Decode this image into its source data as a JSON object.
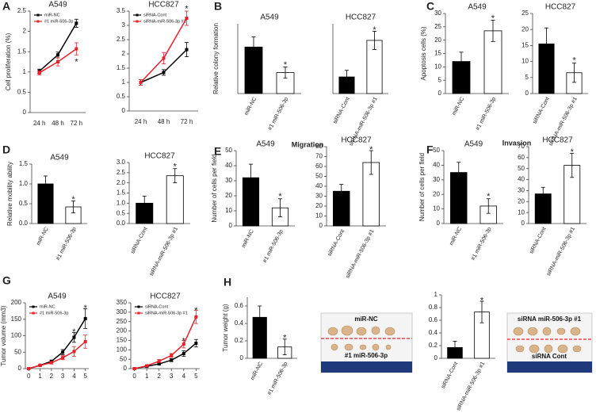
{
  "panel_labels": [
    "A",
    "B",
    "C",
    "D",
    "E",
    "F",
    "G",
    "H"
  ],
  "headings": [
    "Migration",
    "Invasion"
  ],
  "photos": [
    {
      "labels": [
        "miR-NC",
        "#1 miR-506-3p"
      ]
    },
    {
      "labels": [
        "siRNA miR-506-3p #1",
        "siRNA Cont"
      ]
    }
  ],
  "chart_data": [
    {
      "type": "line",
      "title": "A549",
      "ylabel": "Cell proliferation (%)",
      "categories": [
        "24 h",
        "48 h",
        "72 h"
      ],
      "series": [
        {
          "name": "miR-NC",
          "color": "#000000",
          "values": [
            1.02,
            1.42,
            2.2
          ],
          "errors": [
            0.05,
            0.07,
            0.1
          ]
        },
        {
          "name": "#1 miR-506-3p",
          "color": "#e8202a",
          "values": [
            0.98,
            1.25,
            1.57
          ],
          "errors": [
            0.05,
            0.1,
            0.15
          ]
        }
      ],
      "ylim": [
        0,
        2.5
      ],
      "yticks": [
        0,
        0.5,
        1,
        1.5,
        2,
        2.5
      ],
      "legend": "upper left",
      "annotations": [
        {
          "text": "*",
          "x": 2,
          "y": 1.3
        }
      ]
    },
    {
      "type": "line",
      "title": "HCC827",
      "categories": [
        "24 h",
        "48 h",
        "72 h"
      ],
      "series": [
        {
          "name": "siRNA-Cont",
          "color": "#000000",
          "values": [
            1.0,
            1.35,
            2.15
          ],
          "errors": [
            0.1,
            0.1,
            0.25
          ]
        },
        {
          "name": "siRNA-miR-506-3p #1",
          "color": "#e8202a",
          "values": [
            1.0,
            1.85,
            3.25
          ],
          "errors": [
            0.1,
            0.2,
            0.25
          ]
        }
      ],
      "ylim": [
        0,
        3.5
      ],
      "yticks": [
        0,
        0.5,
        1,
        1.5,
        2,
        2.5,
        3,
        3.5
      ],
      "legend": "upper left",
      "annotations": [
        {
          "text": "*",
          "x": 2,
          "y": 3.65
        }
      ]
    },
    {
      "type": "bar",
      "title": "A549",
      "ylabel": "Relative colony formation",
      "categories": [
        "miR-NC",
        "#1 miR-506-3p"
      ],
      "values": [
        1.0,
        0.45
      ],
      "errors": [
        0.22,
        0.12
      ],
      "colors": [
        "#000000",
        "#ffffff"
      ],
      "ylim": [
        0,
        1.5
      ],
      "annotations": [
        {
          "text": "*",
          "x": 1,
          "y": 0.66
        }
      ]
    },
    {
      "type": "bar",
      "title": "HCC827",
      "categories": [
        "siRNA-Cont",
        "siRNA-miR-506-3p #1"
      ],
      "values": [
        1.0,
        3.2
      ],
      "errors": [
        0.4,
        0.55
      ],
      "colors": [
        "#000000",
        "#ffffff"
      ],
      "ylim": [
        0,
        4.2
      ],
      "annotations": [
        {
          "text": "*",
          "x": 1,
          "y": 3.95
        }
      ]
    },
    {
      "type": "bar",
      "title": "A549",
      "ylabel": "Apoptosis cells (%)",
      "categories": [
        "miR-NC",
        "#1 miR-506-3p"
      ],
      "values": [
        12,
        23.5
      ],
      "errors": [
        3.5,
        4
      ],
      "colors": [
        "#000000",
        "#ffffff"
      ],
      "ylim": [
        0,
        30
      ],
      "yticks": [
        0,
        5,
        10,
        15,
        20,
        25,
        30
      ],
      "annotations": [
        {
          "text": "*",
          "x": 1,
          "y": 29
        }
      ]
    },
    {
      "type": "bar",
      "title": "HCC827",
      "categories": [
        "siRNA-Cont",
        "siRNA-miR-506-3p #1"
      ],
      "values": [
        15.5,
        6.5
      ],
      "errors": [
        5,
        3
      ],
      "colors": [
        "#000000",
        "#ffffff"
      ],
      "ylim": [
        0,
        25
      ],
      "yticks": [
        0,
        5,
        10,
        15,
        20,
        25
      ],
      "annotations": [
        {
          "text": "*",
          "x": 1,
          "y": 11
        }
      ]
    },
    {
      "type": "bar",
      "title": "A549",
      "ylabel": "Relative mobility ability",
      "categories": [
        "miR-NC",
        "#1 miR-506-3p"
      ],
      "values": [
        1.0,
        0.42
      ],
      "errors": [
        0.2,
        0.15
      ],
      "colors": [
        "#000000",
        "#ffffff"
      ],
      "ylim": [
        0,
        1.5
      ],
      "yticks": [
        {
          "value": 0,
          "label": "0.0"
        },
        {
          "value": 0.5,
          "label": "0.5"
        },
        {
          "value": 1,
          "label": "1.0"
        },
        {
          "value": 1.5,
          "label": "1.5"
        }
      ],
      "annotations": [
        {
          "text": "*",
          "x": 1,
          "y": 0.66
        }
      ]
    },
    {
      "type": "bar",
      "title": "HCC827",
      "categories": [
        "siRNA-Cont",
        "siRNA-miR-506-3p #1"
      ],
      "values": [
        1.0,
        2.35
      ],
      "errors": [
        0.35,
        0.35
      ],
      "colors": [
        "#000000",
        "#ffffff"
      ],
      "ylim": [
        0,
        3
      ],
      "yticks": [
        {
          "value": 0,
          "label": "0.0"
        },
        {
          "value": 0.5,
          "label": "0.5"
        },
        {
          "value": 1,
          "label": "1.0"
        },
        {
          "value": 1.5,
          "label": "1.5"
        },
        {
          "value": 2,
          "label": "2.0"
        },
        {
          "value": 2.5,
          "label": "2.5"
        },
        {
          "value": 3,
          "label": "3.0"
        }
      ],
      "annotations": [
        {
          "text": "*",
          "x": 1,
          "y": 2.9
        }
      ]
    },
    {
      "type": "bar",
      "title": "A549",
      "ylabel": "Number of cells per field",
      "categories": [
        "miR-NC",
        "#1 miR-506-3p"
      ],
      "values": [
        32,
        12
      ],
      "errors": [
        9,
        6
      ],
      "colors": [
        "#000000",
        "#ffffff"
      ],
      "ylim": [
        0,
        50
      ],
      "yticks": [
        0,
        10,
        20,
        30,
        40,
        50
      ],
      "annotations": [
        {
          "text": "*",
          "x": 1,
          "y": 21
        }
      ]
    },
    {
      "type": "bar",
      "title": "HCC827",
      "categories": [
        "siRNA-Cont",
        "siRNA-miR-506-3p #1"
      ],
      "values": [
        35,
        64
      ],
      "errors": [
        7,
        12
      ],
      "colors": [
        "#000000",
        "#ffffff"
      ],
      "ylim": [
        0,
        80
      ],
      "yticks": [
        0,
        10,
        20,
        30,
        40,
        50,
        60,
        70,
        80
      ],
      "annotations": [
        {
          "text": "*",
          "x": 1,
          "y": 79
        }
      ]
    },
    {
      "type": "bar",
      "title": "A549",
      "ylabel": "Number of cells per field",
      "categories": [
        "miR-NC",
        "#1 miR-506-3p"
      ],
      "values": [
        35,
        12
      ],
      "errors": [
        7,
        5
      ],
      "colors": [
        "#000000",
        "#ffffff"
      ],
      "ylim": [
        0,
        50
      ],
      "yticks": [
        0,
        10,
        20,
        30,
        40,
        50
      ],
      "annotations": [
        {
          "text": "*",
          "x": 1,
          "y": 20
        }
      ]
    },
    {
      "type": "bar",
      "title": "HCC827",
      "categories": [
        "siRNA-Cont",
        "siRNA-miR-506-3p #1"
      ],
      "values": [
        27,
        53
      ],
      "errors": [
        6,
        11
      ],
      "colors": [
        "#000000",
        "#ffffff"
      ],
      "ylim": [
        0,
        70
      ],
      "yticks": [
        0,
        10,
        20,
        30,
        40,
        50,
        60,
        70
      ],
      "annotations": [
        {
          "text": "*",
          "x": 1,
          "y": 67
        }
      ]
    },
    {
      "type": "line",
      "title": "A549",
      "ylabel": "Tumor volume (mm3)",
      "x": [
        0,
        1,
        2,
        3,
        4,
        5
      ],
      "xlim": [
        -0.3,
        5.3
      ],
      "xticks": [
        0,
        1,
        2,
        3,
        4,
        5
      ],
      "series": [
        {
          "name": "miR-NC",
          "color": "#000000",
          "values": [
            0,
            10,
            22,
            50,
            95,
            152
          ],
          "errors": [
            0,
            2,
            4,
            8,
            15,
            30
          ]
        },
        {
          "name": "#1 miR-506-3p",
          "color": "#e8202a",
          "values": [
            0,
            10,
            18,
            33,
            52,
            82
          ],
          "errors": [
            0,
            2,
            4,
            6,
            15,
            20
          ]
        }
      ],
      "ylim": [
        0,
        200
      ],
      "yticks": [
        0,
        50,
        100,
        150,
        200
      ],
      "legend": "upper left",
      "annotations": [
        {
          "text": "*",
          "x": 4,
          "y": 118
        },
        {
          "text": "*",
          "x": 5,
          "y": 190
        }
      ]
    },
    {
      "type": "line",
      "title": "HCC827",
      "x": [
        0,
        1,
        2,
        3,
        4,
        5
      ],
      "xlim": [
        -0.3,
        5.3
      ],
      "xticks": [
        0,
        1,
        2,
        3,
        4,
        5
      ],
      "series": [
        {
          "name": "siRNA-Cont",
          "color": "#000000",
          "values": [
            0,
            12,
            25,
            45,
            80,
            135
          ],
          "errors": [
            0,
            3,
            5,
            8,
            15,
            20
          ]
        },
        {
          "name": "siRNA-miR-506-3p #1",
          "color": "#e8202a",
          "values": [
            0,
            15,
            40,
            70,
            130,
            275
          ],
          "errors": [
            0,
            3,
            8,
            10,
            20,
            35
          ]
        }
      ],
      "ylim": [
        0,
        350
      ],
      "yticks": [
        0,
        50,
        100,
        150,
        200,
        250,
        300,
        350
      ],
      "legend": "upper left",
      "annotations": [
        {
          "text": "*",
          "x": 4,
          "y": 158
        },
        {
          "text": "*",
          "x": 5,
          "y": 320
        }
      ]
    },
    {
      "type": "bar",
      "ylabel": "Tumor weight (g)",
      "categories": [
        "miR-NC",
        "#1 miR-506-3p"
      ],
      "values": [
        0.47,
        0.13
      ],
      "errors": [
        0.13,
        0.09
      ],
      "colors": [
        "#000000",
        "#ffffff"
      ],
      "ylim": [
        0,
        0.7
      ],
      "yticks": [
        0,
        0.2,
        0.4,
        0.6
      ],
      "annotations": [
        {
          "text": "*",
          "x": 1,
          "y": 0.26
        }
      ]
    },
    {
      "type": "bar",
      "categories": [
        "siRNA-Cont",
        "siRNA-miR-506-3p #1"
      ],
      "values": [
        0.17,
        0.73
      ],
      "errors": [
        0.1,
        0.17
      ],
      "colors": [
        "#000000",
        "#ffffff"
      ],
      "ylim": [
        0,
        1
      ],
      "yticks": [
        0,
        0.2,
        0.4,
        0.6,
        0.8,
        1
      ],
      "annotations": [
        {
          "text": "*",
          "x": 1,
          "y": 0.94
        }
      ]
    }
  ]
}
